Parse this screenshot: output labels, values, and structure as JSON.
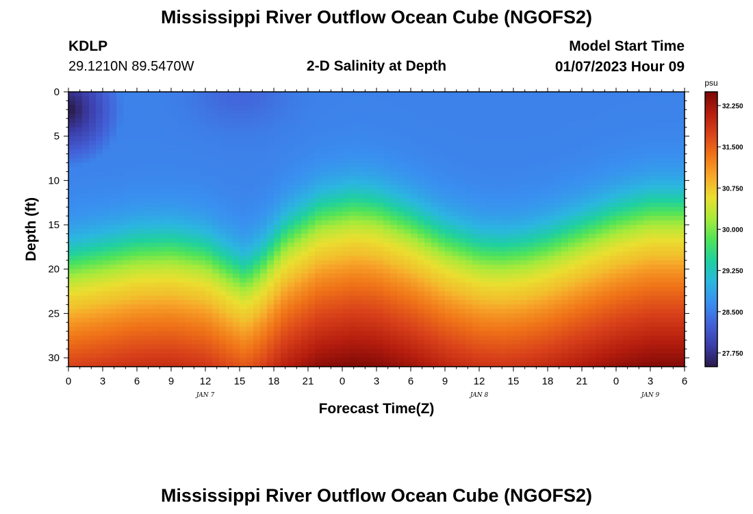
{
  "page": {
    "title_top": "Mississippi River Outflow Ocean Cube (NGOFS2)",
    "title_bottom": "Mississippi River Outflow Ocean Cube (NGOFS2)",
    "station_id": "KDLP",
    "station_coords": "29.1210N  89.5470W",
    "plot_title": "2-D Salinity at Depth",
    "model_start_label": "Model Start Time",
    "model_start_value": "01/07/2023 Hour 09"
  },
  "chart_data": {
    "type": "heatmap",
    "title": "2-D Salinity at Depth",
    "xlabel": "Forecast Time(Z)",
    "ylabel": "Depth (ft)",
    "x_tick_labels": [
      "0",
      "3",
      "6",
      "9",
      "12",
      "15",
      "18",
      "21",
      "0",
      "3",
      "6",
      "9",
      "12",
      "15",
      "18",
      "21",
      "0",
      "3",
      "6"
    ],
    "x_hours": [
      0,
      3,
      6,
      9,
      12,
      15,
      18,
      21,
      24,
      27,
      30,
      33,
      36,
      39,
      42,
      45,
      48,
      51,
      54
    ],
    "xlim": [
      0,
      54
    ],
    "date_labels": [
      {
        "label": "JAN 7",
        "hour": 12
      },
      {
        "label": "JAN 8",
        "hour": 36
      },
      {
        "label": "JAN 9",
        "hour": 51
      }
    ],
    "y_ticks": [
      0,
      5,
      10,
      15,
      20,
      25,
      30
    ],
    "ylim": [
      0,
      31
    ],
    "y_reversed": true,
    "colorbar": {
      "unit": "psu",
      "range": [
        27.5,
        32.5
      ],
      "ticks": [
        "32.250",
        "31.500",
        "30.750",
        "30.000",
        "29.250",
        "28.500",
        "27.750"
      ],
      "colors": [
        "#2a1a4a",
        "#3b3da8",
        "#4361d8",
        "#3a8ef0",
        "#2bb6e0",
        "#1fd0a0",
        "#4fe35a",
        "#a8ea3a",
        "#eadf30",
        "#f7a82a",
        "#f07418",
        "#d9421a",
        "#b51d0e",
        "#7a0806"
      ]
    },
    "halocline": {
      "hours": [
        0,
        3,
        6,
        9,
        12,
        14,
        15.5,
        17,
        19,
        22,
        25,
        27,
        30,
        33,
        36,
        38,
        40,
        42,
        45,
        48,
        51,
        54
      ],
      "depth_ft": [
        19.5,
        18.8,
        18.0,
        17.8,
        18.5,
        20.0,
        21.0,
        19.5,
        16.5,
        14.0,
        13.2,
        13.5,
        15.0,
        17.0,
        18.3,
        18.5,
        18.2,
        17.5,
        16.0,
        14.5,
        13.5,
        13.5
      ]
    },
    "surface_fresh_spot": {
      "hour": 0,
      "depth_ft": 2,
      "value": 27.5
    }
  }
}
